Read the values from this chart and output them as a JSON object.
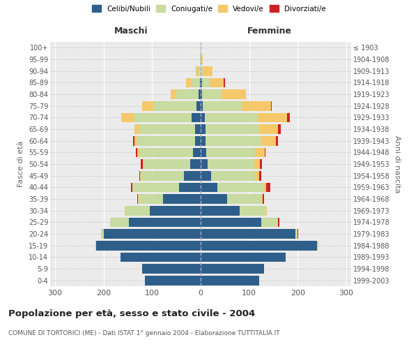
{
  "age_groups": [
    "0-4",
    "5-9",
    "10-14",
    "15-19",
    "20-24",
    "25-29",
    "30-34",
    "35-39",
    "40-44",
    "45-49",
    "50-54",
    "55-59",
    "60-64",
    "65-69",
    "70-74",
    "75-79",
    "80-84",
    "85-89",
    "90-94",
    "95-99",
    "100+"
  ],
  "birth_years": [
    "1999-2003",
    "1994-1998",
    "1989-1993",
    "1984-1988",
    "1979-1983",
    "1974-1978",
    "1969-1973",
    "1964-1968",
    "1959-1963",
    "1954-1958",
    "1949-1953",
    "1944-1948",
    "1939-1943",
    "1934-1938",
    "1929-1933",
    "1924-1928",
    "1919-1923",
    "1914-1918",
    "1909-1913",
    "1904-1908",
    "≤ 1903"
  ],
  "males": {
    "celibe": [
      115,
      120,
      165,
      215,
      200,
      148,
      105,
      78,
      45,
      34,
      22,
      16,
      12,
      12,
      18,
      8,
      5,
      2,
      0,
      0,
      0
    ],
    "coniugato": [
      0,
      0,
      0,
      2,
      5,
      38,
      50,
      50,
      95,
      90,
      95,
      110,
      120,
      115,
      120,
      90,
      45,
      18,
      5,
      1,
      0
    ],
    "vedovo": [
      0,
      0,
      0,
      0,
      0,
      0,
      1,
      1,
      1,
      1,
      2,
      5,
      5,
      10,
      25,
      22,
      12,
      10,
      5,
      1,
      0
    ],
    "divorziato": [
      0,
      0,
      0,
      0,
      0,
      0,
      1,
      1,
      3,
      2,
      5,
      2,
      2,
      0,
      0,
      0,
      0,
      0,
      0,
      0,
      0
    ]
  },
  "females": {
    "nubile": [
      120,
      130,
      175,
      240,
      195,
      125,
      80,
      55,
      35,
      22,
      15,
      12,
      10,
      10,
      8,
      5,
      3,
      3,
      0,
      0,
      0
    ],
    "coniugata": [
      0,
      0,
      0,
      2,
      5,
      35,
      55,
      70,
      95,
      90,
      95,
      100,
      115,
      110,
      110,
      80,
      40,
      15,
      5,
      0,
      0
    ],
    "vedova": [
      0,
      0,
      0,
      0,
      0,
      0,
      1,
      3,
      5,
      8,
      12,
      20,
      30,
      40,
      60,
      60,
      50,
      30,
      20,
      5,
      1
    ],
    "divorziata": [
      0,
      0,
      0,
      0,
      1,
      2,
      1,
      3,
      8,
      5,
      5,
      2,
      5,
      5,
      5,
      2,
      0,
      2,
      0,
      0,
      0
    ]
  },
  "colors": {
    "celibe": "#2e5f8a",
    "coniugato": "#c8dba0",
    "vedovo": "#f5c96a",
    "divorziato": "#cc2222"
  },
  "xlim": 310,
  "title": "Popolazione per età, sesso e stato civile - 2004",
  "subtitle": "COMUNE DI TORTORICI (ME) - Dati ISTAT 1° gennaio 2004 - Elaborazione TUTTITALIA.IT",
  "ylabel": "Fasce di età",
  "ylabel_right": "Anni di nascita",
  "xlabel_left": "Maschi",
  "xlabel_right": "Femmine",
  "legend_labels": [
    "Celibi/Nubili",
    "Coniugati/e",
    "Vedovi/e",
    "Divorziati/e"
  ],
  "background_color": "#ffffff",
  "plot_bg_color": "#ebebeb"
}
